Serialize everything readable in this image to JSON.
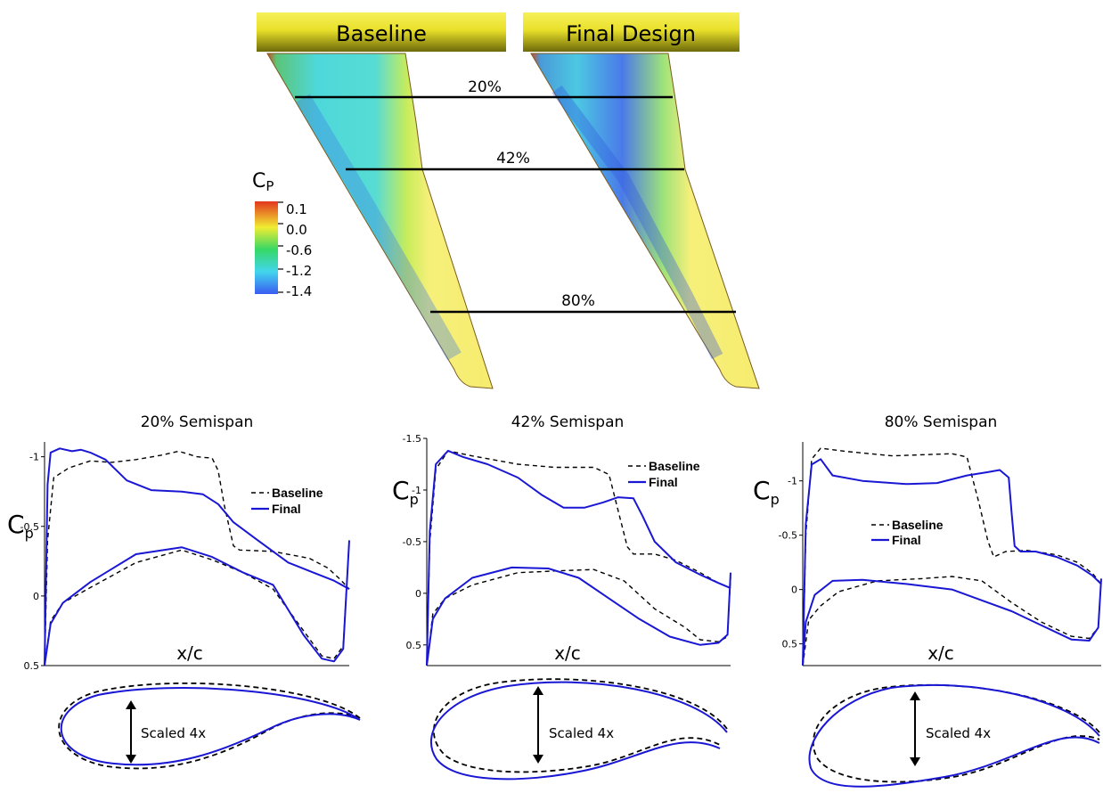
{
  "wing_view": {
    "baseline_label": "Baseline",
    "final_label": "Final Design",
    "station_labels": [
      "20%",
      "42%",
      "80%"
    ],
    "colorbar": {
      "title_main": "C",
      "title_sub": "P",
      "tick_labels": [
        "0.1",
        "0.0",
        "-0.6",
        "-1.2",
        "-1.4"
      ],
      "colors": [
        "#e2361e",
        "#f1ec32",
        "#36d866",
        "#42d6ee",
        "#3a5cf2"
      ]
    }
  },
  "colors": {
    "baseline": "#000000",
    "final": "#1a17d4",
    "banner_top": "#f6f05a",
    "banner_bottom": "#6d6a0a"
  },
  "airfoil_label": "Scaled 4x",
  "chart_data": [
    {
      "type": "line",
      "title": "20% Semispan",
      "ylabel_main": "C",
      "ylabel_sub": "p",
      "xlabel": "x/c",
      "ylim": [
        0.5,
        -1.1
      ],
      "yticks": [
        "-1",
        "-0.5",
        "0",
        "0.5"
      ],
      "legend": {
        "position": "right",
        "entries": [
          "Baseline",
          "Final"
        ]
      },
      "series": [
        {
          "name": "Baseline",
          "style": "dashed",
          "upper": [
            [
              0,
              0.5
            ],
            [
              0.01,
              -0.4
            ],
            [
              0.03,
              -0.85
            ],
            [
              0.08,
              -0.92
            ],
            [
              0.15,
              -0.97
            ],
            [
              0.22,
              -0.96
            ],
            [
              0.3,
              -0.98
            ],
            [
              0.38,
              -1.01
            ],
            [
              0.44,
              -1.04
            ],
            [
              0.5,
              -1.0
            ],
            [
              0.55,
              -0.99
            ],
            [
              0.57,
              -0.9
            ],
            [
              0.59,
              -0.65
            ],
            [
              0.62,
              -0.36
            ],
            [
              0.64,
              -0.33
            ],
            [
              0.75,
              -0.32
            ],
            [
              0.87,
              -0.27
            ],
            [
              0.93,
              -0.2
            ],
            [
              0.97,
              -0.12
            ],
            [
              1.0,
              -0.05
            ]
          ],
          "lower": [
            [
              0,
              0.5
            ],
            [
              0.02,
              0.18
            ],
            [
              0.06,
              0.05
            ],
            [
              0.15,
              -0.06
            ],
            [
              0.3,
              -0.24
            ],
            [
              0.45,
              -0.33
            ],
            [
              0.55,
              -0.26
            ],
            [
              0.65,
              -0.17
            ],
            [
              0.75,
              -0.05
            ],
            [
              0.85,
              0.25
            ],
            [
              0.91,
              0.43
            ],
            [
              0.95,
              0.45
            ],
            [
              0.98,
              0.36
            ],
            [
              1.0,
              -0.4
            ]
          ]
        },
        {
          "name": "Final",
          "style": "solid",
          "upper": [
            [
              0,
              0.5
            ],
            [
              0.01,
              -0.8
            ],
            [
              0.02,
              -1.03
            ],
            [
              0.05,
              -1.06
            ],
            [
              0.09,
              -1.04
            ],
            [
              0.12,
              -1.05
            ],
            [
              0.15,
              -1.03
            ],
            [
              0.2,
              -0.98
            ],
            [
              0.27,
              -0.83
            ],
            [
              0.35,
              -0.76
            ],
            [
              0.45,
              -0.75
            ],
            [
              0.52,
              -0.73
            ],
            [
              0.57,
              -0.66
            ],
            [
              0.62,
              -0.53
            ],
            [
              0.7,
              -0.4
            ],
            [
              0.8,
              -0.24
            ],
            [
              0.88,
              -0.17
            ],
            [
              0.95,
              -0.11
            ],
            [
              1.0,
              -0.05
            ]
          ],
          "lower": [
            [
              0,
              0.5
            ],
            [
              0.02,
              0.2
            ],
            [
              0.06,
              0.05
            ],
            [
              0.15,
              -0.1
            ],
            [
              0.3,
              -0.3
            ],
            [
              0.45,
              -0.35
            ],
            [
              0.55,
              -0.28
            ],
            [
              0.65,
              -0.17
            ],
            [
              0.75,
              -0.08
            ],
            [
              0.85,
              0.28
            ],
            [
              0.91,
              0.45
            ],
            [
              0.95,
              0.47
            ],
            [
              0.98,
              0.38
            ],
            [
              1.0,
              -0.4
            ]
          ]
        }
      ]
    },
    {
      "type": "line",
      "title": "42% Semispan",
      "ylabel_main": "C",
      "ylabel_sub": "p",
      "xlabel": "x/c",
      "ylim": [
        0.7,
        -1.5
      ],
      "yticks": [
        "-1.5",
        "-1",
        "-0.5",
        "0",
        "0.5"
      ],
      "legend": {
        "position": "top-right",
        "entries": [
          "Baseline",
          "Final"
        ]
      },
      "series": [
        {
          "name": "Baseline",
          "style": "dashed",
          "upper": [
            [
              0,
              0.7
            ],
            [
              0.01,
              -0.5
            ],
            [
              0.03,
              -1.2
            ],
            [
              0.07,
              -1.38
            ],
            [
              0.15,
              -1.33
            ],
            [
              0.3,
              -1.25
            ],
            [
              0.42,
              -1.22
            ],
            [
              0.55,
              -1.22
            ],
            [
              0.6,
              -1.15
            ],
            [
              0.63,
              -0.8
            ],
            [
              0.66,
              -0.45
            ],
            [
              0.68,
              -0.38
            ],
            [
              0.75,
              -0.38
            ],
            [
              0.82,
              -0.32
            ],
            [
              0.9,
              -0.2
            ],
            [
              0.96,
              -0.1
            ],
            [
              1.0,
              -0.05
            ]
          ],
          "lower": [
            [
              0,
              0.7
            ],
            [
              0.02,
              0.2
            ],
            [
              0.06,
              0.05
            ],
            [
              0.15,
              -0.08
            ],
            [
              0.3,
              -0.2
            ],
            [
              0.45,
              -0.22
            ],
            [
              0.55,
              -0.23
            ],
            [
              0.65,
              -0.12
            ],
            [
              0.75,
              0.15
            ],
            [
              0.85,
              0.33
            ],
            [
              0.9,
              0.45
            ],
            [
              0.96,
              0.47
            ],
            [
              0.99,
              0.42
            ],
            [
              1.0,
              -0.15
            ]
          ]
        },
        {
          "name": "Final",
          "style": "solid",
          "upper": [
            [
              0,
              0.7
            ],
            [
              0.01,
              -0.6
            ],
            [
              0.03,
              -1.25
            ],
            [
              0.07,
              -1.38
            ],
            [
              0.12,
              -1.32
            ],
            [
              0.2,
              -1.25
            ],
            [
              0.3,
              -1.12
            ],
            [
              0.38,
              -0.95
            ],
            [
              0.45,
              -0.83
            ],
            [
              0.52,
              -0.83
            ],
            [
              0.58,
              -0.88
            ],
            [
              0.63,
              -0.93
            ],
            [
              0.68,
              -0.92
            ],
            [
              0.71,
              -0.75
            ],
            [
              0.75,
              -0.5
            ],
            [
              0.82,
              -0.3
            ],
            [
              0.9,
              -0.18
            ],
            [
              0.96,
              -0.1
            ],
            [
              1.0,
              -0.05
            ]
          ],
          "lower": [
            [
              0,
              0.7
            ],
            [
              0.02,
              0.25
            ],
            [
              0.06,
              0.05
            ],
            [
              0.15,
              -0.15
            ],
            [
              0.28,
              -0.25
            ],
            [
              0.4,
              -0.24
            ],
            [
              0.5,
              -0.15
            ],
            [
              0.6,
              0.05
            ],
            [
              0.7,
              0.25
            ],
            [
              0.8,
              0.42
            ],
            [
              0.9,
              0.5
            ],
            [
              0.96,
              0.48
            ],
            [
              0.99,
              0.4
            ],
            [
              1.0,
              -0.2
            ]
          ]
        }
      ]
    },
    {
      "type": "line",
      "title": "80% Semispan",
      "ylabel_main": "C",
      "ylabel_sub": "p",
      "xlabel": "x/c",
      "ylim": [
        0.7,
        -1.35
      ],
      "yticks": [
        "-1",
        "-0.5",
        "0",
        "0.5"
      ],
      "legend": {
        "position": "left",
        "entries": [
          "Baseline",
          "Final"
        ]
      },
      "series": [
        {
          "name": "Baseline",
          "style": "dashed",
          "upper": [
            [
              0,
              0.7
            ],
            [
              0.01,
              -0.5
            ],
            [
              0.03,
              -1.2
            ],
            [
              0.06,
              -1.3
            ],
            [
              0.15,
              -1.27
            ],
            [
              0.3,
              -1.23
            ],
            [
              0.5,
              -1.25
            ],
            [
              0.55,
              -1.22
            ],
            [
              0.59,
              -0.8
            ],
            [
              0.62,
              -0.45
            ],
            [
              0.64,
              -0.3
            ],
            [
              0.68,
              -0.35
            ],
            [
              0.75,
              -0.36
            ],
            [
              0.85,
              -0.32
            ],
            [
              0.92,
              -0.25
            ],
            [
              0.97,
              -0.15
            ],
            [
              1.0,
              -0.05
            ]
          ],
          "lower": [
            [
              0,
              0.7
            ],
            [
              0.02,
              0.28
            ],
            [
              0.06,
              0.15
            ],
            [
              0.12,
              0.02
            ],
            [
              0.25,
              -0.08
            ],
            [
              0.4,
              -0.1
            ],
            [
              0.5,
              -0.12
            ],
            [
              0.6,
              -0.08
            ],
            [
              0.7,
              0.12
            ],
            [
              0.8,
              0.3
            ],
            [
              0.9,
              0.43
            ],
            [
              0.96,
              0.45
            ],
            [
              0.99,
              0.35
            ],
            [
              1.0,
              -0.1
            ]
          ]
        },
        {
          "name": "Final",
          "style": "solid",
          "upper": [
            [
              0,
              0.7
            ],
            [
              0.01,
              -0.6
            ],
            [
              0.03,
              -1.15
            ],
            [
              0.06,
              -1.2
            ],
            [
              0.1,
              -1.05
            ],
            [
              0.2,
              -1.0
            ],
            [
              0.35,
              -0.97
            ],
            [
              0.45,
              -0.98
            ],
            [
              0.55,
              -1.05
            ],
            [
              0.62,
              -1.08
            ],
            [
              0.66,
              -1.1
            ],
            [
              0.69,
              -1.03
            ],
            [
              0.7,
              -0.7
            ],
            [
              0.71,
              -0.4
            ],
            [
              0.73,
              -0.35
            ],
            [
              0.78,
              -0.35
            ],
            [
              0.85,
              -0.3
            ],
            [
              0.92,
              -0.22
            ],
            [
              0.97,
              -0.13
            ],
            [
              1.0,
              -0.05
            ]
          ],
          "lower": [
            [
              0,
              0.7
            ],
            [
              0.01,
              0.3
            ],
            [
              0.04,
              0.05
            ],
            [
              0.1,
              -0.08
            ],
            [
              0.2,
              -0.09
            ],
            [
              0.35,
              -0.05
            ],
            [
              0.5,
              0.0
            ],
            [
              0.6,
              0.1
            ],
            [
              0.7,
              0.2
            ],
            [
              0.8,
              0.33
            ],
            [
              0.9,
              0.46
            ],
            [
              0.96,
              0.47
            ],
            [
              0.99,
              0.35
            ],
            [
              1.0,
              -0.1
            ]
          ]
        }
      ]
    }
  ]
}
